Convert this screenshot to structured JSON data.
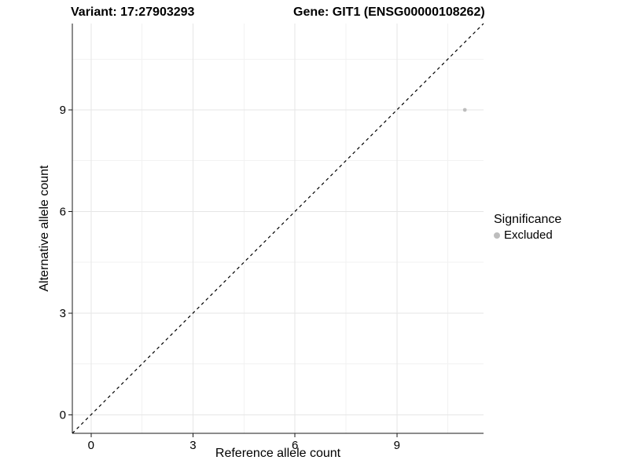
{
  "chart_data": {
    "type": "scatter",
    "titles": {
      "variant": "Variant: 17:27903293",
      "gene": "Gene: GIT1 (ENSG00000108262)"
    },
    "xlabel": "Reference allele count",
    "ylabel": "Alternative allele count",
    "xlim": [
      -0.55,
      11.55
    ],
    "ylim": [
      -0.55,
      11.55
    ],
    "xticks": [
      0,
      3,
      6,
      9
    ],
    "yticks": [
      0,
      3,
      6,
      9
    ],
    "x_minor_ticks": [
      1.5,
      4.5,
      7.5,
      10.5
    ],
    "y_minor_ticks": [
      1.5,
      4.5,
      7.5,
      10.5
    ],
    "grid": "major+minor",
    "reference_line": {
      "type": "abline",
      "slope": 1,
      "intercept": 0,
      "style": "dashed",
      "color": "#000000"
    },
    "series": [
      {
        "name": "Excluded",
        "color": "#bdbdbd",
        "points": [
          {
            "x": 11,
            "y": 9
          }
        ]
      }
    ],
    "legend": {
      "title": "Significance",
      "position": "right",
      "items": [
        {
          "label": "Excluded",
          "color": "#bdbdbd"
        }
      ]
    },
    "colors": {
      "background": "#ffffff",
      "grid_major": "#e6e6e6",
      "grid_minor": "#f2f2f2",
      "axis": "#1a1a1a",
      "text": "#000000"
    }
  }
}
